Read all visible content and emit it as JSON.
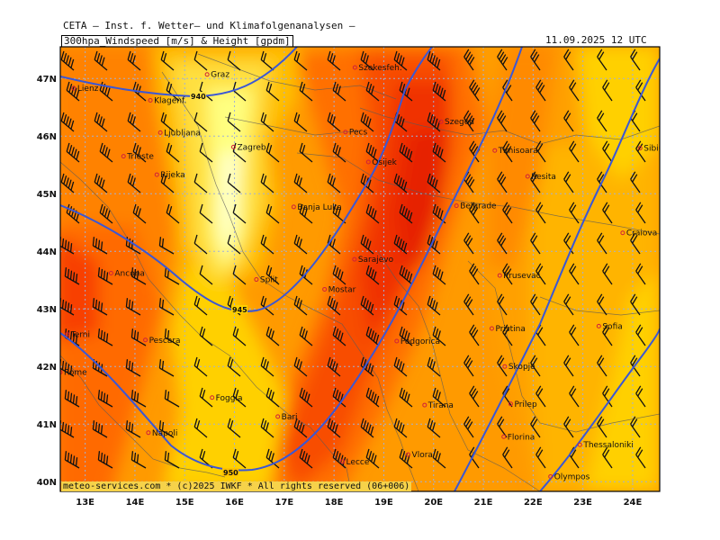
{
  "header": {
    "app_title": "CETA — Inst. f. Wetter— und Klimafolgenanalysen —",
    "product": "300hpa_Windspeed [m/s] & Height [gpdm]",
    "valid_time": "11.09.2025 12 UTC"
  },
  "footer": "meteo-services.com * (c)2025 IWKF * All rights reserved (06+006)",
  "map": {
    "lon_ticks": [
      "13E",
      "14E",
      "15E",
      "16E",
      "17E",
      "18E",
      "19E",
      "20E",
      "21E",
      "22E",
      "23E",
      "24E"
    ],
    "lat_ticks": [
      "47N",
      "46N",
      "45N",
      "44N",
      "43N",
      "42N",
      "41N",
      "40N"
    ],
    "isohypse_labels": [
      "940",
      "945",
      "950"
    ],
    "cities": [
      {
        "name": "Graz",
        "lon": 15.45,
        "lat": 47.07
      },
      {
        "name": "Szekesfeh.",
        "lon": 18.42,
        "lat": 47.19
      },
      {
        "name": "Lienz",
        "lon": 12.77,
        "lat": 46.83
      },
      {
        "name": "Klagenf.",
        "lon": 14.31,
        "lat": 46.62
      },
      {
        "name": "Ljubljana",
        "lon": 14.51,
        "lat": 46.06
      },
      {
        "name": "Zagreb",
        "lon": 15.98,
        "lat": 45.81
      },
      {
        "name": "Pecs",
        "lon": 18.23,
        "lat": 46.07
      },
      {
        "name": "Szeged",
        "lon": 20.15,
        "lat": 46.25
      },
      {
        "name": "Timisoara",
        "lon": 21.23,
        "lat": 45.75
      },
      {
        "name": "Sibiu",
        "lon": 24.15,
        "lat": 45.79
      },
      {
        "name": "Trieste",
        "lon": 13.77,
        "lat": 45.65
      },
      {
        "name": "Rijeka",
        "lon": 14.44,
        "lat": 45.33
      },
      {
        "name": "Osijek",
        "lon": 18.69,
        "lat": 45.55
      },
      {
        "name": "Resita",
        "lon": 21.89,
        "lat": 45.3
      },
      {
        "name": "Banja Luka",
        "lon": 17.19,
        "lat": 44.77
      },
      {
        "name": "Belgrade",
        "lon": 20.46,
        "lat": 44.79
      },
      {
        "name": "Craiova",
        "lon": 23.8,
        "lat": 44.32
      },
      {
        "name": "Sarajevo",
        "lon": 18.41,
        "lat": 43.86
      },
      {
        "name": "Split",
        "lon": 16.44,
        "lat": 43.51
      },
      {
        "name": "Ancona",
        "lon": 13.52,
        "lat": 43.62
      },
      {
        "name": "Mostar",
        "lon": 17.81,
        "lat": 43.34
      },
      {
        "name": "Terni",
        "lon": 12.64,
        "lat": 42.56
      },
      {
        "name": "Pescara",
        "lon": 14.21,
        "lat": 42.46
      },
      {
        "name": "Pristina",
        "lon": 21.17,
        "lat": 42.66
      },
      {
        "name": "Sofia",
        "lon": 23.32,
        "lat": 42.7
      },
      {
        "name": "Podgorica",
        "lon": 19.26,
        "lat": 42.44
      },
      {
        "name": "Krusevac",
        "lon": 21.33,
        "lat": 43.58
      },
      {
        "name": "Rome",
        "lon": 12.5,
        "lat": 41.9
      },
      {
        "name": "Skopje",
        "lon": 21.43,
        "lat": 42.0
      },
      {
        "name": "Foggia",
        "lon": 15.55,
        "lat": 41.46
      },
      {
        "name": "Tirana",
        "lon": 19.82,
        "lat": 41.33
      },
      {
        "name": "Prilep",
        "lon": 21.55,
        "lat": 41.35
      },
      {
        "name": "Napoli",
        "lon": 14.27,
        "lat": 40.85
      },
      {
        "name": "Bari",
        "lon": 16.87,
        "lat": 41.13
      },
      {
        "name": "Florina",
        "lon": 21.41,
        "lat": 40.78
      },
      {
        "name": "Thessaloniki",
        "lon": 22.94,
        "lat": 40.64
      },
      {
        "name": "Lecce",
        "lon": 18.17,
        "lat": 40.35
      },
      {
        "name": "Vlora",
        "lon": 19.49,
        "lat": 40.47
      },
      {
        "name": "Olympos",
        "lon": 22.35,
        "lat": 40.09
      }
    ]
  },
  "colors": {
    "wind_bands": [
      "#ffffc0",
      "#fff080",
      "#ffd000",
      "#ffb000",
      "#ff9000",
      "#ff6a00",
      "#f84000",
      "#e62000"
    ],
    "isohypse": "#3a57d6",
    "grid": "#a0b0d8",
    "frame": "#000000"
  }
}
